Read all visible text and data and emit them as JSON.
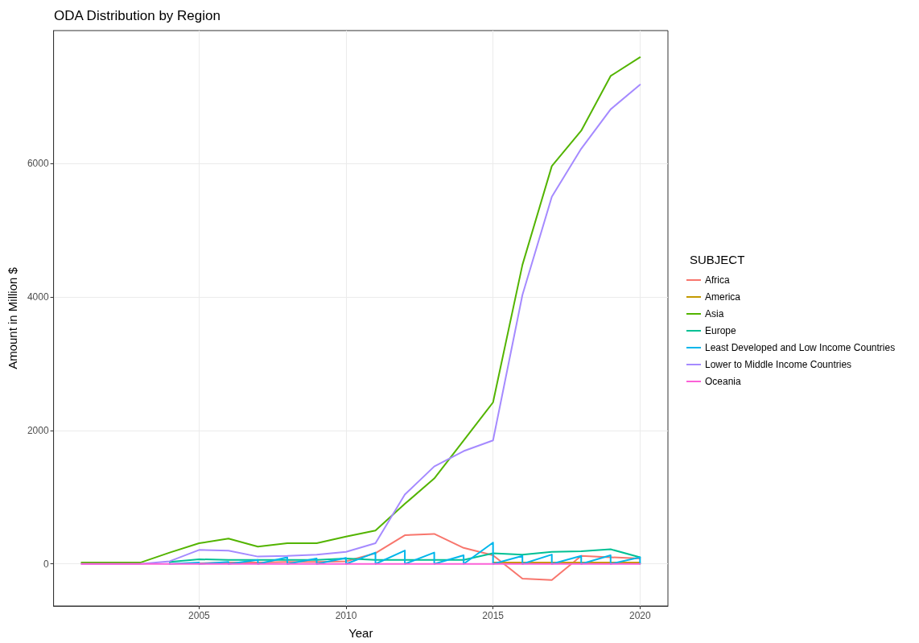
{
  "chart_data": {
    "type": "line",
    "title": "ODA Distribution by Region",
    "xlabel": "Year",
    "ylabel": "Amount in Million $",
    "legend_title": "SUBJECT",
    "x": [
      2001,
      2002,
      2003,
      2004,
      2005,
      2006,
      2007,
      2008,
      2009,
      2010,
      2011,
      2012,
      2013,
      2014,
      2015,
      2016,
      2017,
      2018,
      2019,
      2020
    ],
    "series": [
      {
        "name": "Africa",
        "color": "#f8766d",
        "values": [
          null,
          null,
          null,
          null,
          10,
          20,
          20,
          30,
          30,
          40,
          160,
          430,
          450,
          240,
          130,
          -220,
          -240,
          120,
          100,
          80
        ]
      },
      {
        "name": "America",
        "color": "#c49a00",
        "values": [
          null,
          null,
          null,
          null,
          null,
          null,
          null,
          null,
          null,
          null,
          null,
          null,
          null,
          null,
          20,
          20,
          20,
          20,
          20,
          20
        ]
      },
      {
        "name": "Asia",
        "color": "#53b400",
        "values": [
          20,
          20,
          20,
          170,
          310,
          380,
          260,
          310,
          310,
          410,
          500,
          900,
          1280,
          1850,
          2420,
          4480,
          5960,
          6490,
          7310,
          7590
        ]
      },
      {
        "name": "Europe",
        "color": "#00c094",
        "values": [
          null,
          null,
          null,
          30,
          70,
          60,
          60,
          60,
          60,
          80,
          60,
          60,
          60,
          60,
          160,
          140,
          180,
          190,
          220,
          100
        ]
      },
      {
        "name": "Least Developed and Low Income Countries",
        "color": "#00b6eb",
        "x": [
          2004,
          2004,
          2005,
          2005,
          2006,
          2006,
          2007,
          2007,
          2008,
          2008,
          2009,
          2009,
          2010,
          2010,
          2011,
          2011,
          2012,
          2012,
          2013,
          2013,
          2014,
          2014,
          2015,
          2015,
          2016,
          2016,
          2017,
          2017,
          2018,
          2018,
          2019,
          2019,
          2020,
          2020
        ],
        "values": [
          10,
          0,
          20,
          0,
          30,
          0,
          60,
          0,
          100,
          0,
          80,
          0,
          90,
          0,
          170,
          0,
          200,
          0,
          170,
          0,
          130,
          0,
          320,
          0,
          120,
          0,
          140,
          0,
          120,
          0,
          130,
          0,
          100,
          0
        ]
      },
      {
        "name": "Lower to Middle Income Countries",
        "color": "#a58aff",
        "values": [
          0,
          0,
          0,
          40,
          210,
          200,
          110,
          120,
          140,
          180,
          310,
          1040,
          1460,
          1690,
          1850,
          4030,
          5500,
          6220,
          6810,
          7180
        ]
      },
      {
        "name": "Oceania",
        "color": "#fb61d7",
        "values": [
          0,
          0,
          0,
          0,
          0,
          0,
          0,
          0,
          0,
          0,
          0,
          0,
          0,
          0,
          0,
          0,
          0,
          0,
          0,
          0
        ]
      }
    ],
    "xlim": [
      2000.05,
      2020.95
    ],
    "xticks": [
      2005,
      2010,
      2015,
      2020
    ],
    "ylim": [
      -630,
      7990
    ],
    "yticks": [
      0,
      2000,
      4000,
      6000
    ],
    "grid": true,
    "legend": "right",
    "marker": "none",
    "line_style": "solid"
  }
}
